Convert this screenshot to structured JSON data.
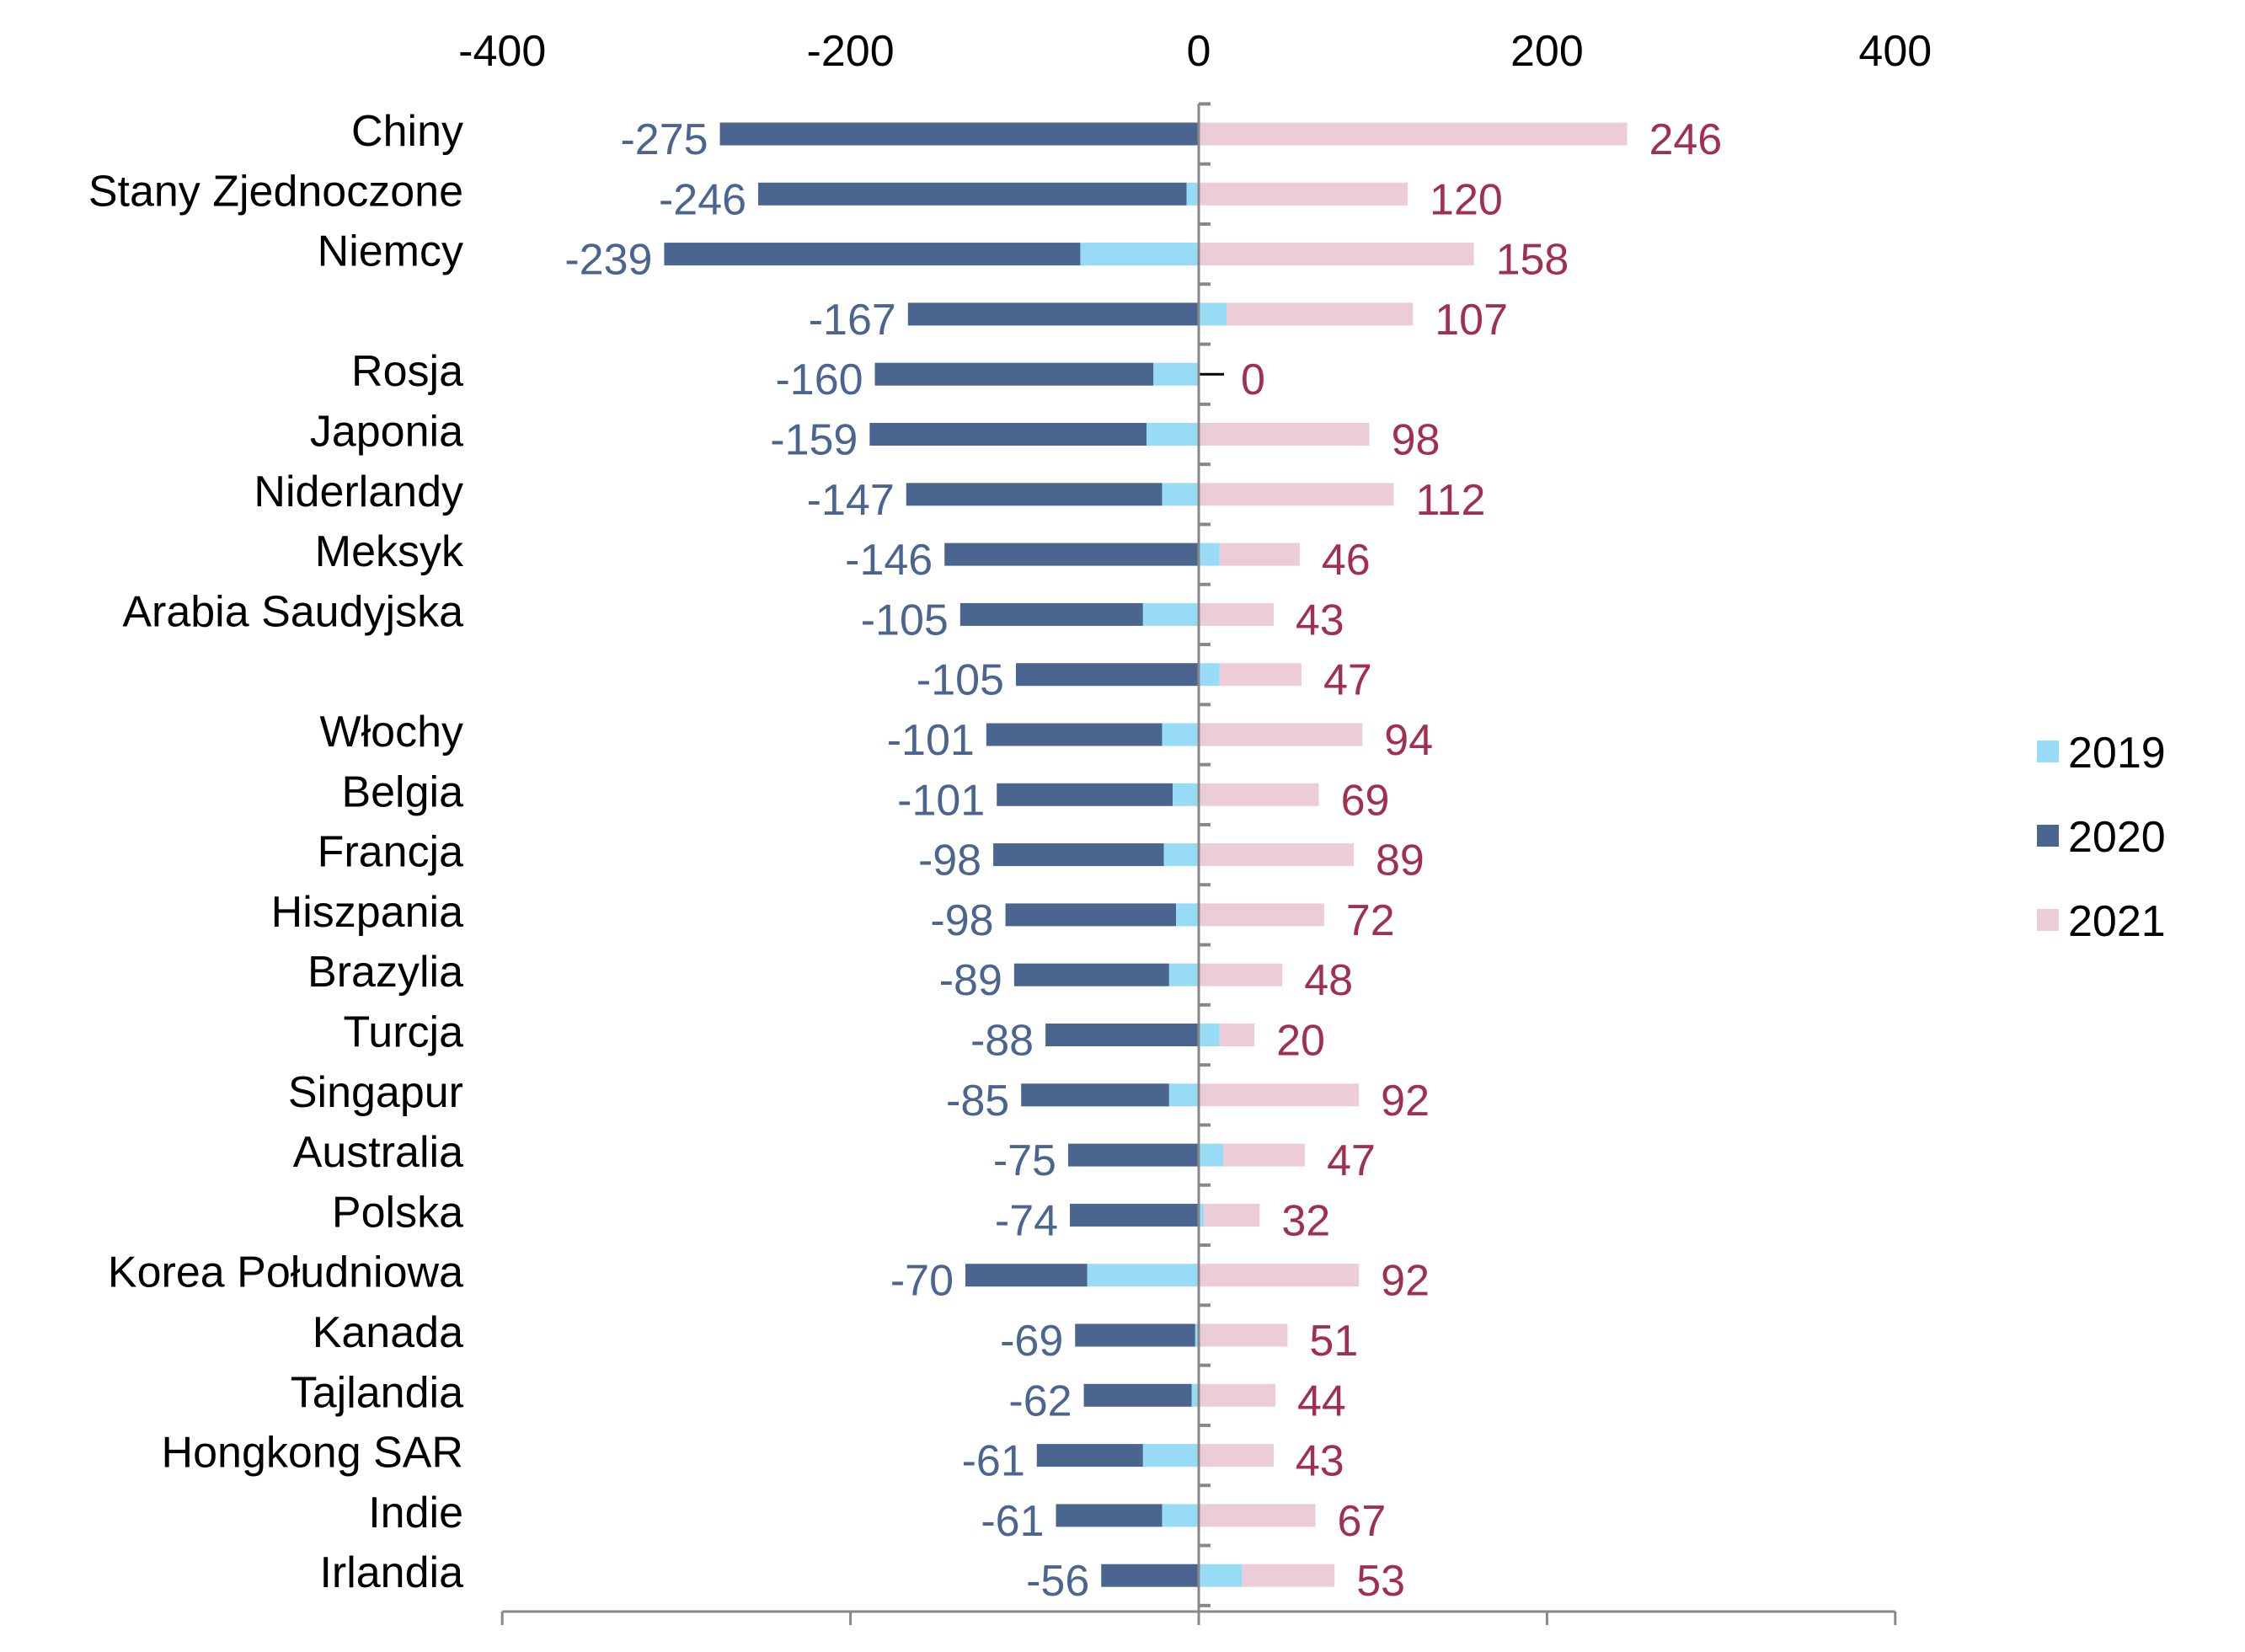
{
  "chart_data": {
    "type": "bar",
    "orientation": "horizontal",
    "stacked": true,
    "title": "",
    "xlabel": "",
    "ylabel": "",
    "xlim": [
      -400,
      400
    ],
    "x_ticks": [
      "-400",
      "-200",
      "0",
      "200",
      "400"
    ],
    "x_tick_values": [
      -400,
      -200,
      0,
      200,
      400
    ],
    "legend_position": "right",
    "categories": [
      "Chiny",
      "Stany Zjednoczone",
      "Niemcy",
      "",
      "Rosja",
      "Japonia",
      "Niderlandy",
      "Meksyk",
      "Arabia Saudyjska",
      "",
      "Włochy",
      "Belgia",
      "Francja",
      "Hiszpania",
      "Brazylia",
      "Turcja",
      "Singapur",
      "Australia",
      "Polska",
      "Korea Południowa",
      "Kanada",
      "Tajlandia",
      "Hongkong SAR",
      "Indie",
      "Irlandia"
    ],
    "series": [
      {
        "name": "2019",
        "color": "#97dbf6",
        "values": [
          0,
          -7,
          -68,
          16,
          -26,
          -30,
          -21,
          12,
          -32,
          12,
          -21,
          -15,
          -20,
          -13,
          -17,
          12,
          -17,
          14,
          3,
          -64,
          -2,
          -4,
          -32,
          -21,
          25
        ]
      },
      {
        "name": "2020",
        "color": "#4a6590",
        "values": [
          -275,
          -246,
          -239,
          -167,
          -160,
          -159,
          -147,
          -146,
          -105,
          -105,
          -101,
          -101,
          -98,
          -98,
          -89,
          -88,
          -85,
          -75,
          -74,
          -70,
          -69,
          -62,
          -61,
          -61,
          -56
        ]
      },
      {
        "name": "2021",
        "color": "#ecccd6",
        "values": [
          246,
          120,
          158,
          107,
          0,
          98,
          112,
          46,
          43,
          47,
          94,
          69,
          89,
          72,
          48,
          20,
          92,
          47,
          32,
          92,
          51,
          44,
          43,
          67,
          53
        ]
      }
    ],
    "data_labels_2020": [
      "-275",
      "-246",
      "-239",
      "-167",
      "-160",
      "-159",
      "-147",
      "-146",
      "-105",
      "-105",
      "-101",
      "-101",
      "-98",
      "-98",
      "-89",
      "-88",
      "-85",
      "-75",
      "-74",
      "-70",
      "-69",
      "-62",
      "-61",
      "-61",
      "-56"
    ],
    "data_labels_2021": [
      "246",
      "120",
      "158",
      "107",
      "0",
      "98",
      "112",
      "46",
      "43",
      "47",
      "94",
      "69",
      "89",
      "72",
      "48",
      "20",
      "92",
      "47",
      "32",
      "92",
      "51",
      "44",
      "43",
      "67",
      "53"
    ],
    "label_colors": {
      "2020": "#4a6590",
      "2021": "#a0304e"
    }
  }
}
